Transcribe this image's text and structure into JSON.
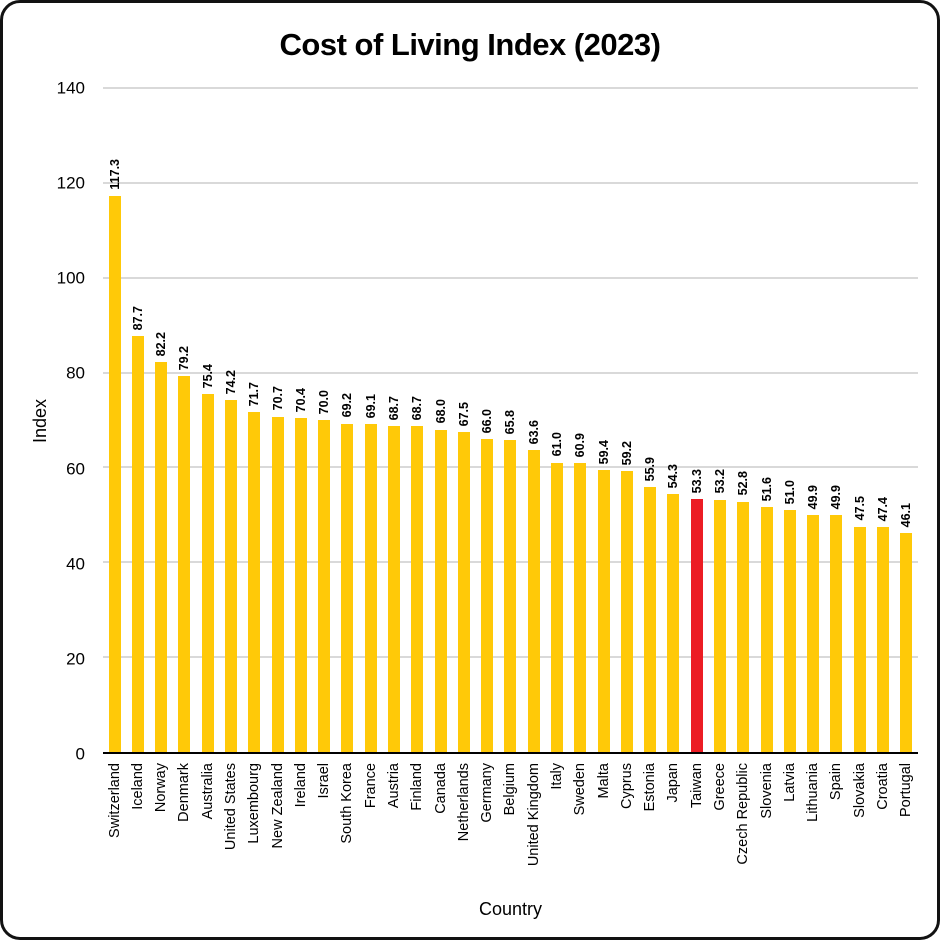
{
  "chart_data": {
    "type": "bar",
    "title": "Cost of Living Index (2023)",
    "xlabel": "Country",
    "ylabel": "Index",
    "ylim": [
      0,
      140
    ],
    "yticks": [
      0,
      20,
      40,
      60,
      80,
      100,
      120,
      140
    ],
    "grid": "horizontal",
    "legend": "none",
    "bar_color": "#FFC908",
    "highlight_category": "Taiwan",
    "highlight_color": "#EC1C24",
    "categories": [
      "Switzerland",
      "Iceland",
      "Norway",
      "Denmark",
      "Australia",
      "United States",
      "Luxembourg",
      "New Zealand",
      "Ireland",
      "Israel",
      "South Korea",
      "France",
      "Austria",
      "Finland",
      "Canada",
      "Netherlands",
      "Germany",
      "Belgium",
      "United Kingdom",
      "Italy",
      "Sweden",
      "Malta",
      "Cyprus",
      "Estonia",
      "Japan",
      "Taiwan",
      "Greece",
      "Czech Republic",
      "Slovenia",
      "Latvia",
      "Lithuania",
      "Spain",
      "Slovakia",
      "Croatia",
      "Portugal"
    ],
    "values": [
      117.3,
      87.7,
      82.2,
      79.2,
      75.4,
      74.2,
      71.7,
      70.7,
      70.4,
      70.0,
      69.2,
      69.1,
      68.7,
      68.7,
      68.0,
      67.5,
      66.0,
      65.8,
      63.6,
      61.0,
      60.9,
      59.4,
      59.2,
      55.9,
      54.3,
      53.3,
      53.2,
      52.8,
      51.6,
      51.0,
      49.9,
      49.9,
      47.5,
      47.4,
      46.1
    ]
  }
}
